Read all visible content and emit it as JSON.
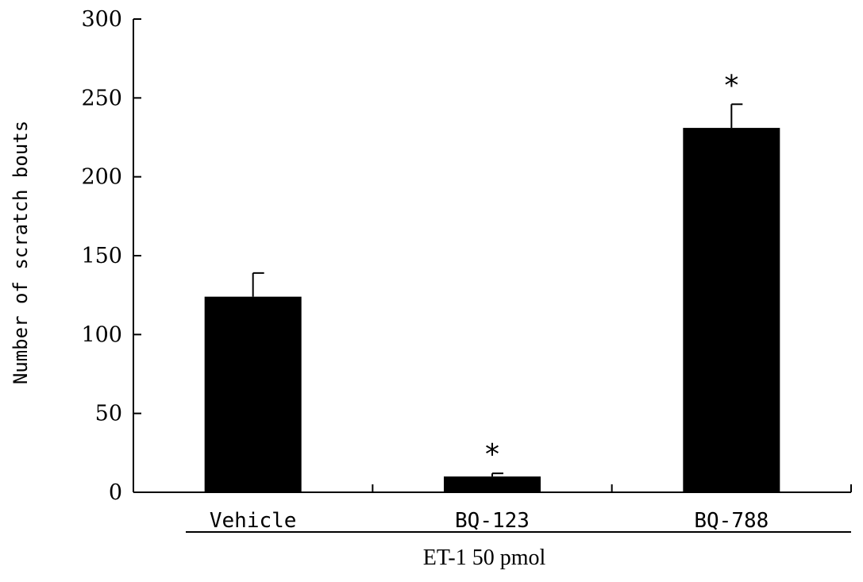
{
  "chart_data": {
    "type": "bar",
    "categories": [
      "Vehicle",
      "BQ-123",
      "BQ-788"
    ],
    "values": [
      124,
      10,
      231
    ],
    "errors": [
      15,
      2,
      15
    ],
    "annotations": [
      "",
      "*",
      "*"
    ],
    "ylabel": "Number of scratch bouts",
    "ylim": [
      0,
      300
    ],
    "yticks": [
      0,
      50,
      100,
      150,
      200,
      250,
      300
    ],
    "yticklabels": [
      "0",
      "50",
      "100",
      "150",
      "200",
      "250",
      "300"
    ],
    "group_label": "ET-1 50 pmol",
    "bar_color": "#000000",
    "grid": false,
    "legend": "none"
  }
}
